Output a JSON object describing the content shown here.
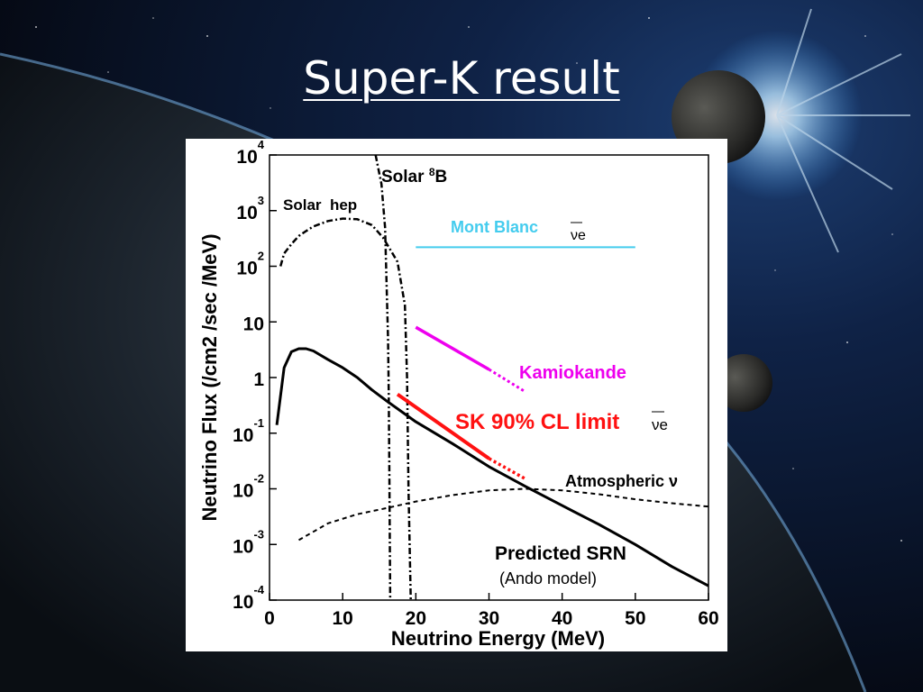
{
  "slide": {
    "title": "Super-K result"
  },
  "chart_data": {
    "type": "line",
    "xlabel": "Neutrino Energy (MeV)",
    "ylabel": "Neutrino Flux (/cm2 /sec /MeV)",
    "xlim": [
      0,
      60
    ],
    "ylim": [
      0.0001,
      10000
    ],
    "y_scale": "log",
    "x_ticks": [
      0,
      10,
      20,
      30,
      40,
      50,
      60
    ],
    "y_ticks": [
      {
        "value": 10000,
        "base": "10",
        "exp": "4"
      },
      {
        "value": 1000,
        "base": "10",
        "exp": "3"
      },
      {
        "value": 100,
        "base": "10",
        "exp": "2"
      },
      {
        "value": 10,
        "base": "10",
        "exp": ""
      },
      {
        "value": 1,
        "base": "1",
        "exp": ""
      },
      {
        "value": 0.1,
        "base": "10",
        "exp": "-1"
      },
      {
        "value": 0.01,
        "base": "10",
        "exp": "-2"
      },
      {
        "value": 0.001,
        "base": "10",
        "exp": "-3"
      },
      {
        "value": 0.0001,
        "base": "10",
        "exp": "-4"
      }
    ],
    "series": [
      {
        "name": "Predicted SRN",
        "style": "solid",
        "color": "#000000",
        "points": [
          [
            1,
            0.14
          ],
          [
            2,
            1.5
          ],
          [
            3,
            2.9
          ],
          [
            4,
            3.3
          ],
          [
            5,
            3.3
          ],
          [
            6,
            3.0
          ],
          [
            8,
            2.1
          ],
          [
            10,
            1.5
          ],
          [
            12,
            1.0
          ],
          [
            14,
            0.6
          ],
          [
            16,
            0.38
          ],
          [
            20,
            0.16
          ],
          [
            25,
            0.065
          ],
          [
            30,
            0.025
          ],
          [
            35,
            0.011
          ],
          [
            40,
            0.005
          ],
          [
            45,
            0.0023
          ],
          [
            50,
            0.001
          ],
          [
            55,
            0.0004
          ],
          [
            60,
            0.00018
          ]
        ]
      },
      {
        "name": "Solar hep",
        "style": "dashdot",
        "color": "#000000",
        "points": [
          [
            1.5,
            100
          ],
          [
            2,
            170
          ],
          [
            3,
            250
          ],
          [
            4,
            350
          ],
          [
            5,
            430
          ],
          [
            6,
            520
          ],
          [
            8,
            650
          ],
          [
            10,
            720
          ],
          [
            12,
            700
          ],
          [
            14,
            550
          ],
          [
            15.5,
            330
          ],
          [
            16.5,
            200
          ],
          [
            17.5,
            120
          ],
          [
            18.5,
            20
          ],
          [
            18.8,
            1
          ],
          [
            19,
            0.01
          ],
          [
            19.3,
            0.0001
          ]
        ]
      },
      {
        "name": "Solar 8B",
        "style": "dashdot",
        "color": "#000000",
        "points": [
          [
            14.5,
            10000
          ],
          [
            15.3,
            3000
          ],
          [
            15.8,
            500
          ],
          [
            16.2,
            5
          ],
          [
            16.3,
            0.5
          ],
          [
            16.4,
            0.01
          ],
          [
            16.5,
            0.0001
          ]
        ]
      },
      {
        "name": "Atmospheric ν",
        "style": "dashed",
        "color": "#000000",
        "points": [
          [
            4,
            0.0012
          ],
          [
            8,
            0.0024
          ],
          [
            12,
            0.0035
          ],
          [
            16,
            0.0045
          ],
          [
            20,
            0.0059
          ],
          [
            25,
            0.0077
          ],
          [
            30,
            0.0094
          ],
          [
            35,
            0.01
          ],
          [
            40,
            0.0094
          ],
          [
            45,
            0.008
          ],
          [
            50,
            0.0065
          ],
          [
            55,
            0.0055
          ],
          [
            60,
            0.0048
          ]
        ]
      },
      {
        "name": "Mont Blanc",
        "style": "solid",
        "color": "#44ccee",
        "points": [
          [
            20,
            220
          ],
          [
            50,
            220
          ]
        ]
      },
      {
        "name": "Kamiokande",
        "style": "solid",
        "color": "#ee00ee",
        "points": [
          [
            20,
            8
          ],
          [
            30,
            1.4
          ]
        ],
        "extension": [
          [
            30,
            1.4
          ],
          [
            35,
            0.55
          ]
        ]
      },
      {
        "name": "SK 90% CL limit",
        "style": "solid",
        "color": "#ff1111",
        "points": [
          [
            17.5,
            0.5
          ],
          [
            30,
            0.035
          ]
        ],
        "extension": [
          [
            30,
            0.035
          ],
          [
            35,
            0.015
          ]
        ]
      }
    ],
    "annotations": [
      {
        "text": "Solar",
        "sup": "8",
        "tail": "B",
        "target": "Solar 8B",
        "color": "#000000"
      },
      {
        "text": "Solar  hep",
        "target": "Solar hep",
        "color": "#000000"
      },
      {
        "text": "Mont Blanc",
        "nu": "νe",
        "target": "Mont Blanc",
        "color": "#44ccee"
      },
      {
        "text": "Kamiokande",
        "target": "Kamiokande",
        "color": "#ee00ee"
      },
      {
        "text": "SK 90% CL limit",
        "nu": "νe",
        "target": "SK 90% CL limit",
        "color": "#ff1111"
      },
      {
        "text": "Atmospheric ν",
        "target": "Atmospheric ν",
        "color": "#000000"
      },
      {
        "text": "Predicted SRN",
        "target": "Predicted SRN",
        "color": "#000000"
      },
      {
        "text": "(Ando model)",
        "target": "Predicted SRN",
        "color": "#000000"
      }
    ]
  }
}
